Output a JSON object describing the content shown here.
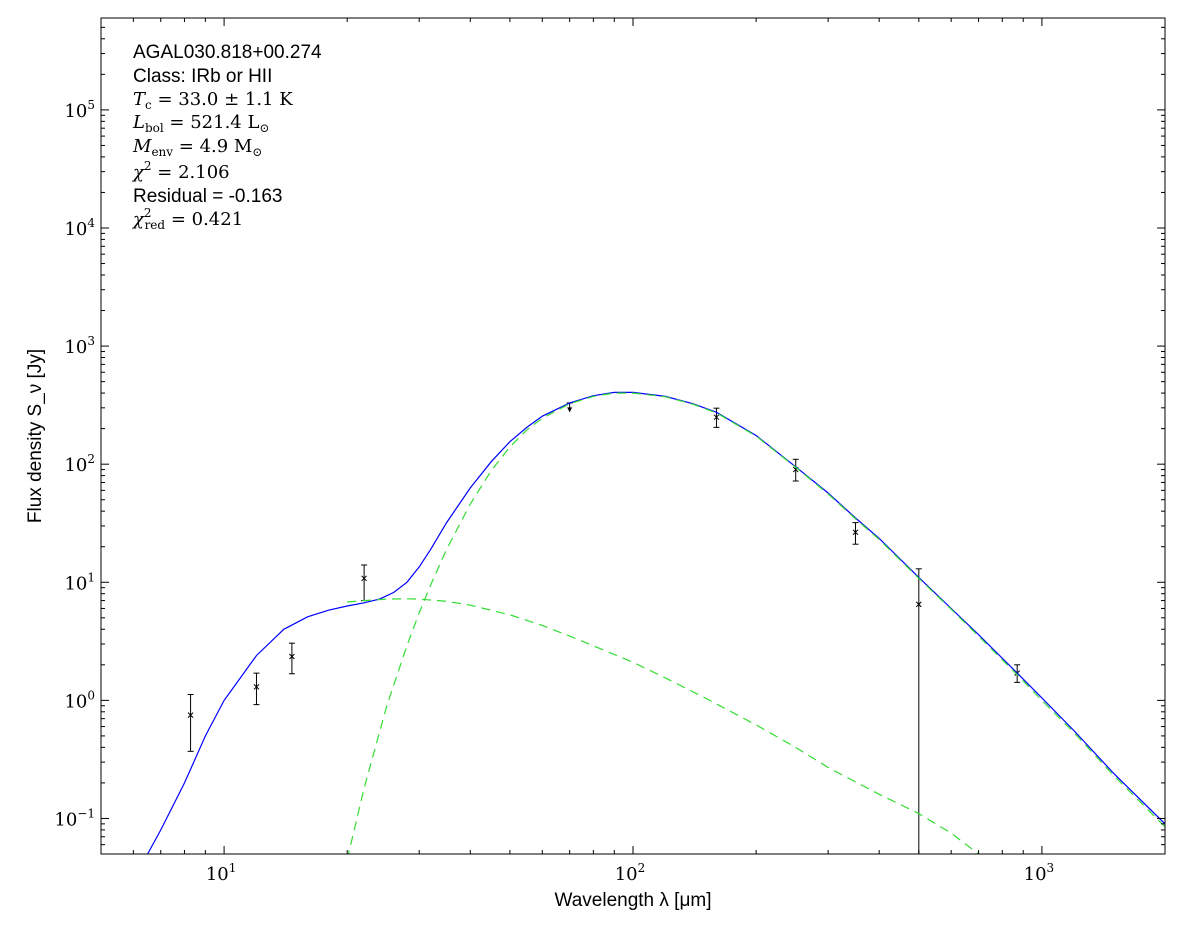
{
  "chart_data": {
    "type": "scatter",
    "x_scale": "log",
    "y_scale": "log",
    "xlim": [
      5,
      2000
    ],
    "ylim": [
      0.05,
      600000
    ],
    "grid": false,
    "xlabel": "Wavelength λ [μm]",
    "ylabel": "Flux density S_ν [Jy]",
    "x_ticks": [
      {
        "value": 10,
        "base": "10",
        "exp": "1"
      },
      {
        "value": 100,
        "base": "10",
        "exp": "2"
      },
      {
        "value": 1000,
        "base": "10",
        "exp": "3"
      }
    ],
    "y_ticks": [
      {
        "value": 0.1,
        "base": "10",
        "exp": "−1"
      },
      {
        "value": 1,
        "base": "10",
        "exp": "0"
      },
      {
        "value": 10,
        "base": "10",
        "exp": "1"
      },
      {
        "value": 100,
        "base": "10",
        "exp": "2"
      },
      {
        "value": 1000,
        "base": "10",
        "exp": "3"
      },
      {
        "value": 10000,
        "base": "10",
        "exp": "4"
      },
      {
        "value": 100000,
        "base": "10",
        "exp": "5"
      }
    ],
    "annotations": {
      "source": "AGAL030.818+00.274",
      "class_line": "Class: IRb or HII",
      "tc": {
        "symbol": "T",
        "sub": "c",
        "text": " = 33.0 ± 1.1 K"
      },
      "lbol": {
        "symbol": "L",
        "sub": "bol",
        "text": " = 521.4 L",
        "tail": "⊙"
      },
      "menv": {
        "symbol": "M",
        "sub": "env",
        "text": " = 4.9 M",
        "tail": "⊙"
      },
      "chi2": {
        "symbol": "χ",
        "sup": "2",
        "text": " = 2.106"
      },
      "residual": "Residual = -0.163",
      "chi2red": {
        "symbol": "χ",
        "sup": "2",
        "sub": "red",
        "text": " = 0.421"
      }
    },
    "series": [
      {
        "kind": "points",
        "color": "#000000",
        "points": [
          {
            "x": 8.28,
            "y": 0.75,
            "ylow": 0.37,
            "yhigh": 1.12
          },
          {
            "x": 12.0,
            "y": 1.3,
            "ylow": 0.92,
            "yhigh": 1.7
          },
          {
            "x": 14.65,
            "y": 2.35,
            "ylow": 1.68,
            "yhigh": 3.05
          },
          {
            "x": 22.0,
            "y": 10.8,
            "ylow": 7.0,
            "yhigh": 14.0
          },
          {
            "x": 70.0,
            "y": 280,
            "upper_limit": true,
            "ytop": 330
          },
          {
            "x": 160.0,
            "y": 250,
            "ylow": 205,
            "yhigh": 298
          },
          {
            "x": 250.0,
            "y": 90,
            "ylow": 72,
            "yhigh": 110
          },
          {
            "x": 350.0,
            "y": 26.5,
            "ylow": 21,
            "yhigh": 32
          },
          {
            "x": 500.0,
            "y": 6.5,
            "ylow": 0.01,
            "yhigh": 13
          },
          {
            "x": 870.0,
            "y": 1.7,
            "ylow": 1.42,
            "yhigh": 2.0
          }
        ]
      },
      {
        "kind": "line",
        "color": "#0000ff",
        "dashed": false,
        "x": [
          6.5,
          7,
          8,
          9,
          10,
          12,
          14,
          16,
          18,
          20,
          22,
          24,
          26,
          28,
          30,
          32,
          35,
          40,
          45,
          50,
          55,
          60,
          70,
          80,
          90,
          100,
          120,
          140,
          160,
          200,
          250,
          300,
          350,
          400,
          500,
          600,
          700,
          870,
          1000,
          1200,
          1500,
          2000
        ],
        "y": [
          0.05,
          0.08,
          0.2,
          0.5,
          1.0,
          2.4,
          4.0,
          5.1,
          5.8,
          6.3,
          6.7,
          7.2,
          8.2,
          10.0,
          13.5,
          19.0,
          32.0,
          63.0,
          105.0,
          155.0,
          205.0,
          255.0,
          330.0,
          380.0,
          405.0,
          405.0,
          375.0,
          325.0,
          275.0,
          175.0,
          95.0,
          57.0,
          35.0,
          23.5,
          11.0,
          6.0,
          3.6,
          1.7,
          1.05,
          0.55,
          0.24,
          0.09
        ]
      },
      {
        "kind": "line",
        "color": "#33dd33",
        "dashed": true,
        "x": [
          20,
          22,
          25,
          28,
          30,
          32,
          35,
          40,
          45,
          50,
          55,
          60,
          70,
          80,
          90,
          100,
          120,
          140,
          160,
          200,
          250,
          300,
          350,
          400,
          500,
          600,
          700,
          870,
          1000,
          1200,
          1500,
          2000
        ],
        "y": [
          0.045,
          0.18,
          0.9,
          2.9,
          5.5,
          9.5,
          19.0,
          46.0,
          88.0,
          140.0,
          195.0,
          245.0,
          325.0,
          375.0,
          400.0,
          400.0,
          372.0,
          322.0,
          272.0,
          173.0,
          94.0,
          56.0,
          34.5,
          23.0,
          10.8,
          5.9,
          3.5,
          1.65,
          1.0,
          0.53,
          0.23,
          0.085
        ]
      },
      {
        "kind": "line",
        "color": "#33dd33",
        "dashed": true,
        "x": [
          20,
          22,
          25,
          28,
          30,
          35,
          40,
          50,
          60,
          70,
          80,
          100,
          120,
          150,
          200,
          250,
          300,
          400,
          500,
          600,
          700
        ],
        "y": [
          6.8,
          7.0,
          7.2,
          7.25,
          7.2,
          6.9,
          6.4,
          5.3,
          4.3,
          3.5,
          2.9,
          2.1,
          1.55,
          1.05,
          0.62,
          0.4,
          0.27,
          0.16,
          0.11,
          0.075,
          0.05
        ]
      }
    ]
  }
}
